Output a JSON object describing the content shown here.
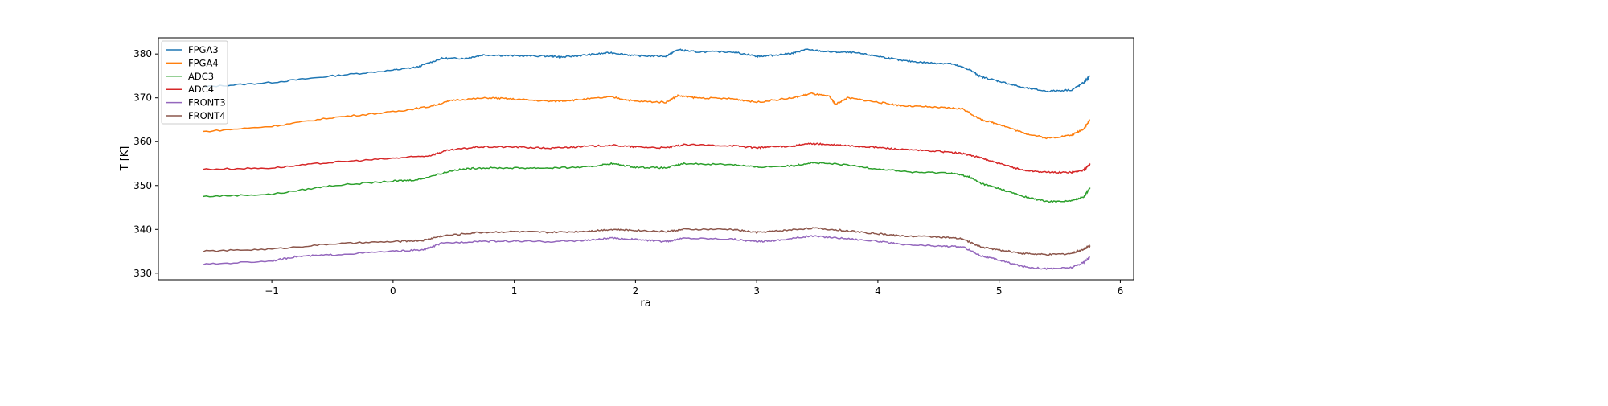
{
  "chart_data": {
    "type": "line",
    "title": "",
    "xlabel": "ra",
    "ylabel": "T [K]",
    "xlim": [
      -1.936,
      6.11
    ],
    "ylim": [
      328.5,
      383.7
    ],
    "xticks": [
      -1,
      0,
      1,
      2,
      3,
      4,
      5,
      6
    ],
    "yticks": [
      330,
      340,
      350,
      360,
      370,
      380
    ],
    "grid": false,
    "legend_position": "top-left",
    "series": [
      {
        "name": "FPGA3",
        "color": "#1f77b4",
        "x": [
          -1.57,
          -1,
          -0.5,
          0,
          0.2,
          0.4,
          0.6,
          0.75,
          1,
          1.3,
          1.4,
          1.6,
          1.8,
          2.0,
          2.25,
          2.35,
          2.5,
          2.8,
          3.0,
          3.1,
          3.3,
          3.4,
          3.6,
          3.8,
          4.0,
          4.2,
          4.4,
          4.6,
          4.75,
          4.85,
          5.0,
          5.2,
          5.4,
          5.6,
          5.7,
          5.75
        ],
        "y": [
          372.5,
          373.5,
          375,
          376.3,
          377,
          379,
          379,
          379.8,
          379.6,
          379.5,
          379.3,
          379.8,
          380.3,
          379.6,
          379.5,
          381,
          380.5,
          380.5,
          379.5,
          379.6,
          380.2,
          381,
          380.5,
          380.3,
          379.5,
          378.5,
          378,
          377.8,
          376.5,
          374.8,
          373.8,
          372.3,
          371.5,
          371.8,
          373.5,
          375
        ]
      },
      {
        "name": "FPGA4",
        "color": "#ff7f0e",
        "x": [
          -1.57,
          -1,
          -0.5,
          0,
          0.3,
          0.5,
          0.8,
          1.0,
          1.3,
          1.5,
          1.8,
          2.0,
          2.25,
          2.35,
          2.5,
          2.8,
          3.0,
          3.3,
          3.45,
          3.6,
          3.65,
          3.75,
          4.0,
          4.2,
          4.5,
          4.7,
          4.85,
          5.0,
          5.2,
          5.4,
          5.6,
          5.7,
          5.75
        ],
        "y": [
          362.3,
          363.5,
          365.5,
          366.8,
          368,
          369.5,
          370,
          369.7,
          369.2,
          369.5,
          370.2,
          369.2,
          369,
          370.5,
          370,
          369.8,
          369,
          370,
          371,
          370.3,
          368.5,
          370,
          369,
          368.2,
          367.8,
          367.5,
          365,
          364,
          362,
          360.8,
          361.5,
          363,
          365
        ]
      },
      {
        "name": "ADC3",
        "color": "#2ca02c",
        "x": [
          -1.57,
          -1,
          -0.5,
          0,
          0.2,
          0.5,
          0.7,
          1.0,
          1.3,
          1.6,
          1.8,
          2.0,
          2.25,
          2.4,
          2.8,
          3.0,
          3.3,
          3.45,
          3.7,
          4.0,
          4.3,
          4.6,
          4.75,
          4.85,
          5.0,
          5.2,
          5.4,
          5.6,
          5.7,
          5.75
        ],
        "y": [
          347.5,
          348,
          350,
          351,
          351.3,
          353.5,
          354,
          354,
          354,
          354.2,
          355,
          354.2,
          354,
          355,
          354.8,
          354.2,
          354.5,
          355.2,
          354.8,
          353.8,
          353,
          352.9,
          352,
          350.5,
          349.3,
          347.5,
          346.3,
          346.5,
          347.5,
          349.5
        ]
      },
      {
        "name": "ADC4",
        "color": "#d62728",
        "x": [
          -1.57,
          -1,
          -0.5,
          0,
          0.3,
          0.45,
          0.7,
          1.0,
          1.3,
          1.5,
          1.8,
          2.0,
          2.25,
          2.4,
          2.8,
          3.0,
          3.1,
          3.3,
          3.45,
          3.6,
          3.8,
          4.0,
          4.2,
          4.5,
          4.7,
          4.85,
          5.0,
          5.2,
          5.4,
          5.6,
          5.7,
          5.75
        ],
        "y": [
          353.7,
          354,
          355.3,
          356.2,
          356.8,
          358,
          358.8,
          358.8,
          358.5,
          358.8,
          359.2,
          358.8,
          358.6,
          359.3,
          359.1,
          358.6,
          358.8,
          359,
          359.6,
          359.3,
          359,
          358.7,
          358.2,
          357.8,
          357.3,
          356.3,
          355,
          353.5,
          353,
          353,
          353.5,
          355
        ]
      },
      {
        "name": "FRONT3",
        "color": "#9467bd",
        "x": [
          -1.57,
          -1,
          -0.8,
          -0.5,
          0,
          0.25,
          0.4,
          0.7,
          1.0,
          1.3,
          1.6,
          1.8,
          2.0,
          2.25,
          2.4,
          2.8,
          3.0,
          3.2,
          3.45,
          3.7,
          4.0,
          4.2,
          4.5,
          4.7,
          4.85,
          5.0,
          5.2,
          5.4,
          5.6,
          5.7,
          5.75
        ],
        "y": [
          332,
          332.8,
          333.8,
          334.2,
          335,
          335.3,
          336.8,
          337.3,
          337.3,
          337.2,
          337.5,
          338,
          337.7,
          337.2,
          338,
          337.8,
          337.2,
          337.6,
          338.5,
          338,
          337.3,
          336.5,
          336.2,
          336,
          334,
          333,
          331.5,
          331,
          331.3,
          332.5,
          333.7
        ]
      },
      {
        "name": "FRONT4",
        "color": "#8c564b",
        "x": [
          -1.57,
          -1,
          -0.5,
          0,
          0.25,
          0.4,
          0.7,
          1.0,
          1.3,
          1.6,
          1.8,
          2.0,
          2.25,
          2.4,
          2.8,
          3.0,
          3.2,
          3.45,
          3.7,
          4.0,
          4.2,
          4.5,
          4.7,
          4.85,
          5.0,
          5.2,
          5.4,
          5.6,
          5.7,
          5.75
        ],
        "y": [
          335,
          335.5,
          336.7,
          337.2,
          337.5,
          338.5,
          339.3,
          339.5,
          339.3,
          339.6,
          340,
          339.8,
          339.5,
          340,
          340,
          339.3,
          339.7,
          340.3,
          339.8,
          339,
          338.5,
          338.3,
          337.8,
          336,
          335.3,
          334.5,
          334.2,
          334.5,
          335.5,
          336.3
        ]
      }
    ]
  }
}
